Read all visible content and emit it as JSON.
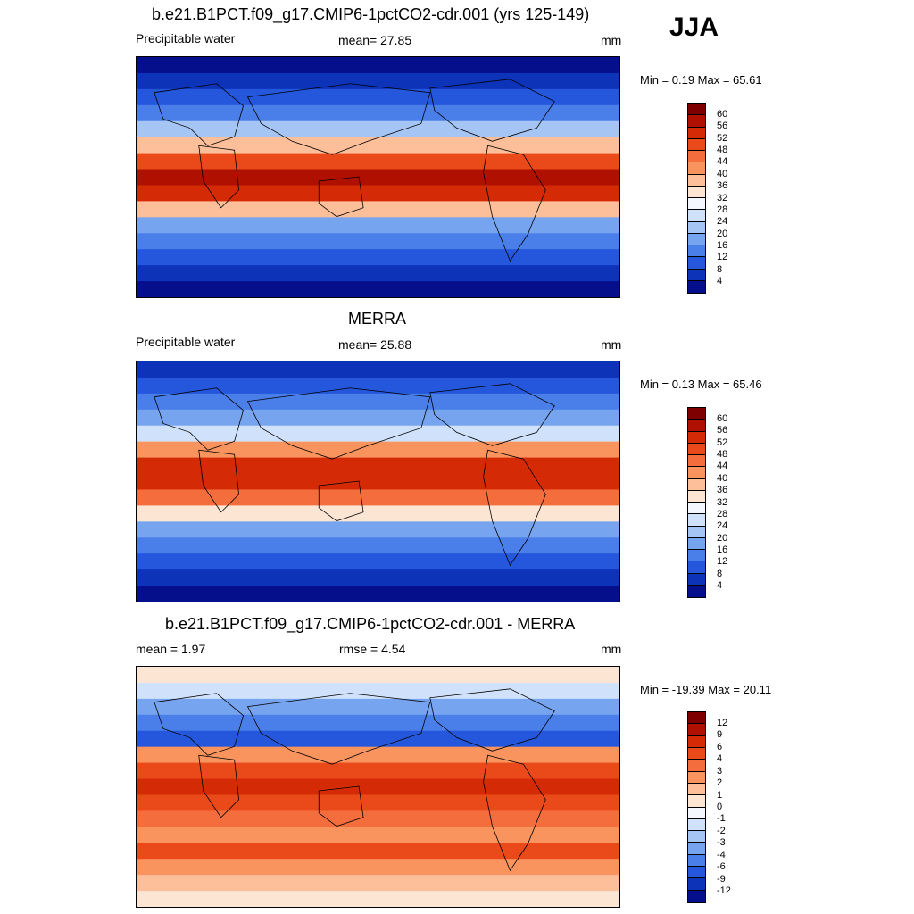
{
  "season": "JJA",
  "panels": [
    {
      "title": "b.e21.B1PCT.f09_g17.CMIP6-1pctCO2-cdr.001 (yrs 125-149)",
      "left_label": "Precipitable water",
      "center_label": "mean=  27.85",
      "units": "mm",
      "minmax": "Min =   0.19 Max =  65.61"
    },
    {
      "title": "MERRA",
      "left_label": "Precipitable water",
      "center_label": "mean=  25.88",
      "units": "mm",
      "minmax": "Min =   0.13 Max =  65.46"
    },
    {
      "title": "b.e21.B1PCT.f09_g17.CMIP6-1pctCO2-cdr.001 - MERRA",
      "left_label": "mean =   1.97",
      "center_label": "rmse =   4.54",
      "units": "mm",
      "minmax": "Min = -19.39 Max =  20.11"
    }
  ],
  "colorbars": {
    "absolute": {
      "labels": [
        "60",
        "56",
        "52",
        "48",
        "44",
        "40",
        "36",
        "32",
        "28",
        "24",
        "20",
        "16",
        "12",
        "8",
        "4"
      ],
      "colors": [
        "#7f0000",
        "#b01000",
        "#d42a05",
        "#ea4a1a",
        "#f36e3c",
        "#f9945f",
        "#fcbf99",
        "#fde5d4",
        "#f4f7fd",
        "#d0e2fb",
        "#a5c6f5",
        "#77a4ef",
        "#4a7ee8",
        "#2457dc",
        "#0d33b9",
        "#050f8c"
      ]
    },
    "difference": {
      "labels": [
        "12",
        "9",
        "6",
        "4",
        "3",
        "2",
        "1",
        "0",
        "-1",
        "-2",
        "-3",
        "-4",
        "-6",
        "-9",
        "-12"
      ],
      "colors": [
        "#7f0000",
        "#b01000",
        "#d42a05",
        "#ea4a1a",
        "#f36e3c",
        "#f9945f",
        "#fcbf99",
        "#fde5d4",
        "#f4f7fd",
        "#d0e2fb",
        "#a5c6f5",
        "#77a4ef",
        "#4a7ee8",
        "#2457dc",
        "#0d33b9",
        "#050f8c"
      ]
    }
  },
  "map_fields": {
    "panel1": [
      "#050f8c",
      "#0d33b9",
      "#2457dc",
      "#4a7ee8",
      "#a5c6f5",
      "#fcbf99",
      "#ea4a1a",
      "#b01000",
      "#d42a05",
      "#fcbf99",
      "#77a4ef",
      "#4a7ee8",
      "#2457dc",
      "#0d33b9",
      "#050f8c"
    ],
    "panel2": [
      "#0d33b9",
      "#2457dc",
      "#4a7ee8",
      "#77a4ef",
      "#d0e2fb",
      "#f9945f",
      "#d42a05",
      "#d42a05",
      "#f36e3c",
      "#fde5d4",
      "#77a4ef",
      "#4a7ee8",
      "#2457dc",
      "#0d33b9",
      "#050f8c"
    ],
    "panel3": [
      "#fde5d4",
      "#d0e2fb",
      "#77a4ef",
      "#4a7ee8",
      "#2457dc",
      "#f9945f",
      "#ea4a1a",
      "#d42a05",
      "#ea4a1a",
      "#f36e3c",
      "#f9945f",
      "#ea4a1a",
      "#f9945f",
      "#fcbf99",
      "#fde5d4"
    ]
  }
}
